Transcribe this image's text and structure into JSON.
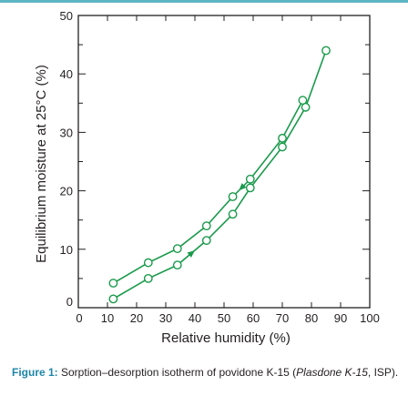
{
  "chart_data": {
    "type": "line",
    "xlabel": "Relative humidity (%)",
    "ylabel": "Equilibrium moisture at 25°C (%)",
    "xlim": [
      0,
      100
    ],
    "ylim": [
      0,
      50
    ],
    "x_ticks": [
      "0",
      "10",
      "20",
      "30",
      "40",
      "50",
      "60",
      "70",
      "80",
      "90",
      "100"
    ],
    "y_ticks": [
      "0",
      "10",
      "20",
      "30",
      "40",
      "50"
    ],
    "grid": false,
    "series": [
      {
        "x": [
          12,
          24,
          34,
          44,
          53,
          59,
          70,
          78,
          85
        ],
        "y": [
          1.5,
          5,
          7.3,
          11.5,
          16,
          20.5,
          27.5,
          34.3,
          44
        ],
        "color": "#1a9a4b",
        "arrow": "up"
      },
      {
        "x": [
          12,
          24,
          34,
          44,
          53,
          59,
          70,
          77
        ],
        "y": [
          4.2,
          7.7,
          10.1,
          14,
          19,
          22,
          29,
          35.5
        ],
        "color": "#1a9a4b",
        "arrow": "down"
      }
    ]
  },
  "caption": {
    "label": "Figure 1:",
    "text_before": " Sorption–desorption isotherm of povidone K-15 (",
    "italic": "Plasdone K-15",
    "text_after": ", ISP)."
  }
}
